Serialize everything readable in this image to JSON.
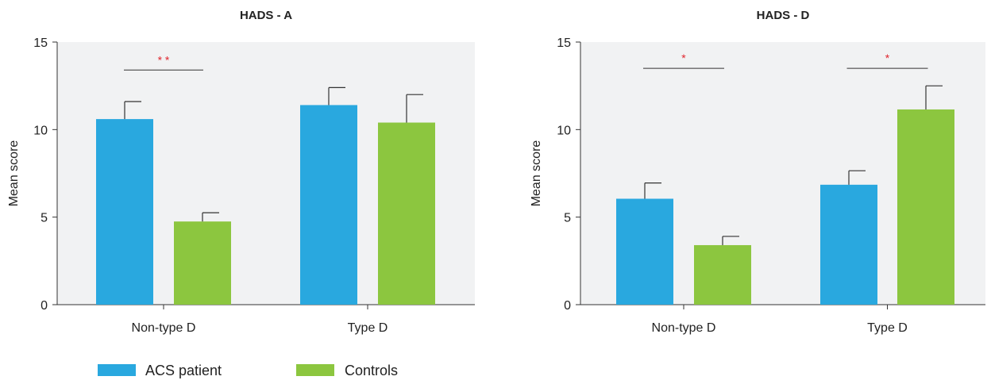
{
  "chart_data": [
    {
      "type": "bar",
      "title": "HADS - A",
      "xlabel": "",
      "ylabel": "Mean score",
      "ylim": [
        0,
        15
      ],
      "yticks": [
        "0",
        "5",
        "10",
        "15"
      ],
      "categories": [
        "Non-type D",
        "Type D"
      ],
      "series": [
        {
          "name": "ACS patient",
          "values": [
            10.6,
            11.4
          ],
          "errors": [
            1.0,
            1.0
          ]
        },
        {
          "name": "Controls",
          "values": [
            4.75,
            10.4
          ],
          "errors": [
            0.5,
            1.6
          ]
        }
      ],
      "significance": [
        {
          "category": "Non-type D",
          "label": "* *",
          "y": 13.4
        },
        {
          "category": "Type D",
          "label": "",
          "y": null
        }
      ],
      "grid": false
    },
    {
      "type": "bar",
      "title": "HADS - D",
      "xlabel": "",
      "ylabel": "Mean score",
      "ylim": [
        0,
        15
      ],
      "yticks": [
        "0",
        "5",
        "10",
        "15"
      ],
      "categories": [
        "Non-type D",
        "Type D"
      ],
      "series": [
        {
          "name": "ACS patient",
          "values": [
            6.05,
            6.85
          ],
          "errors": [
            0.9,
            0.8
          ]
        },
        {
          "name": "Controls",
          "values": [
            3.4,
            11.15
          ],
          "errors": [
            0.5,
            1.35
          ]
        }
      ],
      "significance": [
        {
          "category": "Non-type D",
          "label": "*",
          "y": 13.5
        },
        {
          "category": "Type D",
          "label": "*",
          "y": 13.5
        }
      ],
      "grid": false
    }
  ],
  "legend": {
    "placement": "bottom-left",
    "items": [
      {
        "label": "ACS patient",
        "color": "#29a8df"
      },
      {
        "label": "Controls",
        "color": "#8cc63f"
      }
    ]
  },
  "colors": {
    "plot_bg": "#f1f2f3",
    "significance": "#e0262e"
  }
}
